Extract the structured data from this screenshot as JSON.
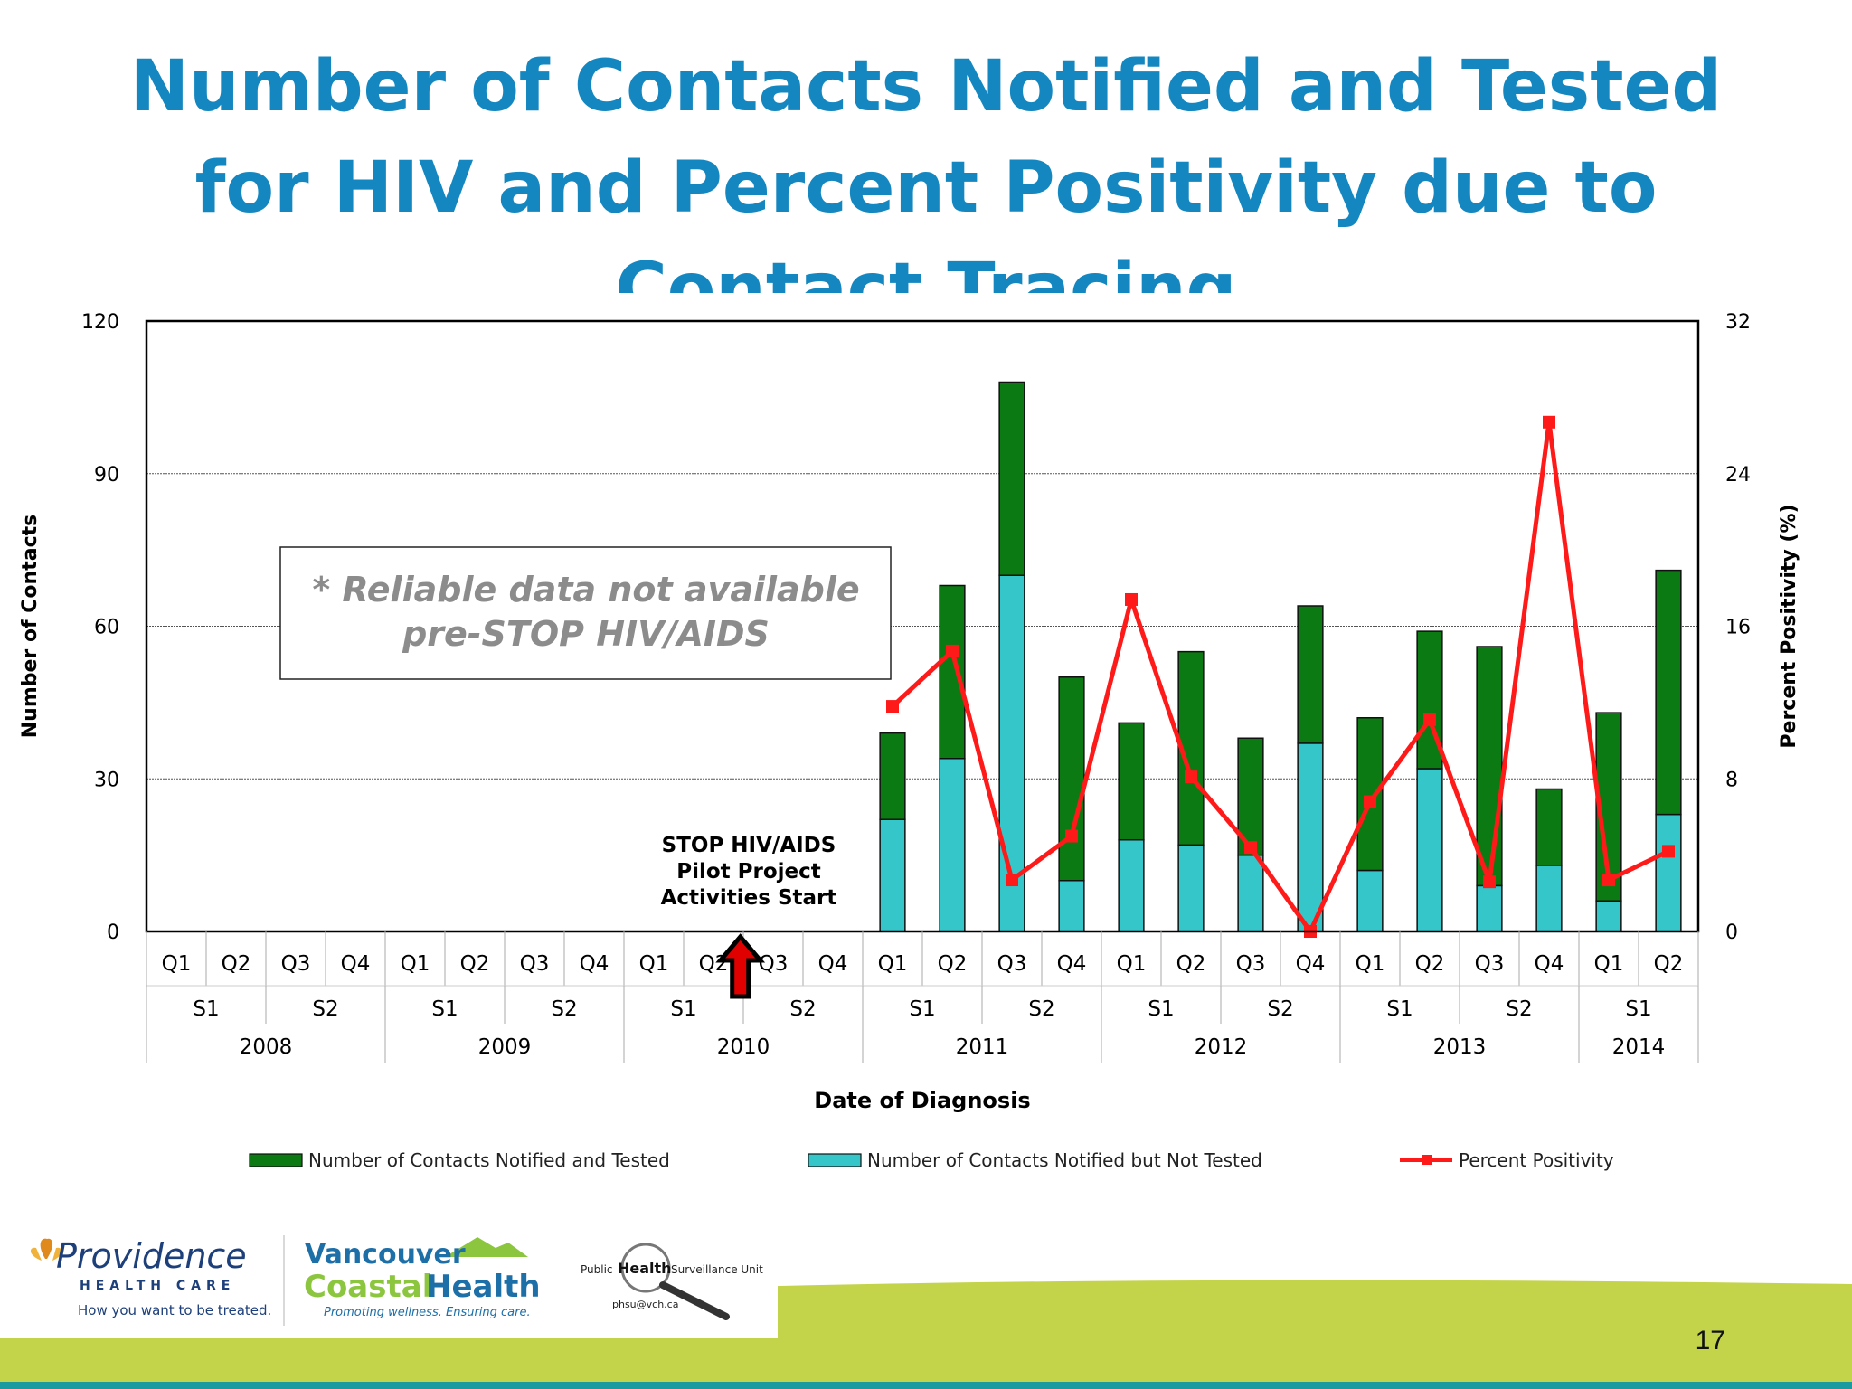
{
  "slide": {
    "title": "Number of Contacts Notified and Tested for HIV and Percent Positivity due to Contact Tracing",
    "page_number": "17"
  },
  "colors": {
    "title": "#1487c0",
    "tested": "#0c7a12",
    "not_tested": "#35c6c9",
    "positivity": "#ff1a1a",
    "footer_green": "#c3d44a",
    "footer_teal": "#1b9aa0"
  },
  "chart_data": {
    "type": "bar",
    "stacked": true,
    "xlabel": "Date of Diagnosis",
    "ylabel": "Number of Contacts",
    "y2label": "Percent Positivity (%)",
    "ylim": [
      0,
      120
    ],
    "yticks": [
      0,
      30,
      60,
      90,
      120
    ],
    "y2lim": [
      0,
      32
    ],
    "y2ticks": [
      0,
      8,
      16,
      24,
      32
    ],
    "grid": true,
    "legend_position": "bottom",
    "categories": [
      "Q1",
      "Q2",
      "Q3",
      "Q4",
      "Q1",
      "Q2",
      "Q3",
      "Q4",
      "Q1",
      "Q2",
      "Q3",
      "Q4",
      "Q1",
      "Q2",
      "Q3",
      "Q4",
      "Q1",
      "Q2",
      "Q3",
      "Q4",
      "Q1",
      "Q2",
      "Q3",
      "Q4",
      "Q1",
      "Q2"
    ],
    "semesters": [
      {
        "label": "S1",
        "start": 0,
        "end": 2
      },
      {
        "label": "S2",
        "start": 2,
        "end": 4
      },
      {
        "label": "S1",
        "start": 4,
        "end": 6
      },
      {
        "label": "S2",
        "start": 6,
        "end": 8
      },
      {
        "label": "S1",
        "start": 8,
        "end": 10
      },
      {
        "label": "S2",
        "start": 10,
        "end": 12
      },
      {
        "label": "S1",
        "start": 12,
        "end": 14
      },
      {
        "label": "S2",
        "start": 14,
        "end": 16
      },
      {
        "label": "S1",
        "start": 16,
        "end": 18
      },
      {
        "label": "S2",
        "start": 18,
        "end": 20
      },
      {
        "label": "S1",
        "start": 20,
        "end": 22
      },
      {
        "label": "S2",
        "start": 22,
        "end": 24
      },
      {
        "label": "S1",
        "start": 24,
        "end": 26
      }
    ],
    "years": [
      {
        "label": "2008",
        "start": 0,
        "end": 4
      },
      {
        "label": "2009",
        "start": 4,
        "end": 8
      },
      {
        "label": "2010",
        "start": 8,
        "end": 12
      },
      {
        "label": "2011",
        "start": 12,
        "end": 16
      },
      {
        "label": "2012",
        "start": 16,
        "end": 20
      },
      {
        "label": "2013",
        "start": 20,
        "end": 24
      },
      {
        "label": "2014",
        "start": 24,
        "end": 26
      }
    ],
    "series": [
      {
        "name": "Number of Contacts Notified but Not Tested",
        "kind": "bar",
        "color": "#35c6c9",
        "values": [
          null,
          null,
          null,
          null,
          null,
          null,
          null,
          null,
          null,
          null,
          null,
          null,
          22,
          34,
          70,
          10,
          18,
          17,
          15,
          37,
          12,
          32,
          9,
          13,
          6,
          23
        ]
      },
      {
        "name": "Number of Contacts Notified and Tested",
        "kind": "bar",
        "color": "#0c7a12",
        "values": [
          null,
          null,
          null,
          null,
          null,
          null,
          null,
          null,
          null,
          null,
          null,
          null,
          17,
          34,
          38,
          40,
          23,
          38,
          23,
          27,
          30,
          27,
          47,
          15,
          37,
          48
        ]
      },
      {
        "name": "Percent Positivity",
        "kind": "line",
        "axis": "right",
        "color": "#ff1a1a",
        "values": [
          null,
          null,
          null,
          null,
          null,
          null,
          null,
          null,
          null,
          null,
          null,
          null,
          11.8,
          14.7,
          2.7,
          5.0,
          17.4,
          8.1,
          4.4,
          0,
          6.8,
          11.1,
          2.6,
          26.7,
          2.7,
          4.2
        ]
      }
    ],
    "legend": [
      {
        "label": "Number of Contacts Notified and Tested",
        "color": "#0c7a12",
        "kind": "bar"
      },
      {
        "label": "Number of Contacts Notified but Not Tested",
        "color": "#35c6c9",
        "kind": "bar"
      },
      {
        "label": "Percent Positivity",
        "color": "#ff1a1a",
        "kind": "line"
      }
    ],
    "annotations": {
      "note_box": [
        "* Reliable data not available",
        "pre-STOP HIV/AIDS"
      ],
      "arrow_label": [
        "STOP HIV/AIDS",
        "Pilot Project",
        "Activities Start"
      ],
      "arrow_at_category": 9
    }
  },
  "logos": {
    "providence": {
      "name": "Providence",
      "line2": "HEALTH CARE",
      "tagline": "How you want to be treated."
    },
    "vch": {
      "line1": "Vancouver",
      "line2a": "Coastal",
      "line2b": "Health",
      "tagline": "Promoting wellness. Ensuring care."
    },
    "phsu": {
      "left": "Public",
      "center": "Health",
      "right": "Surveillance Unit",
      "email": "phsu@vch.ca"
    }
  }
}
